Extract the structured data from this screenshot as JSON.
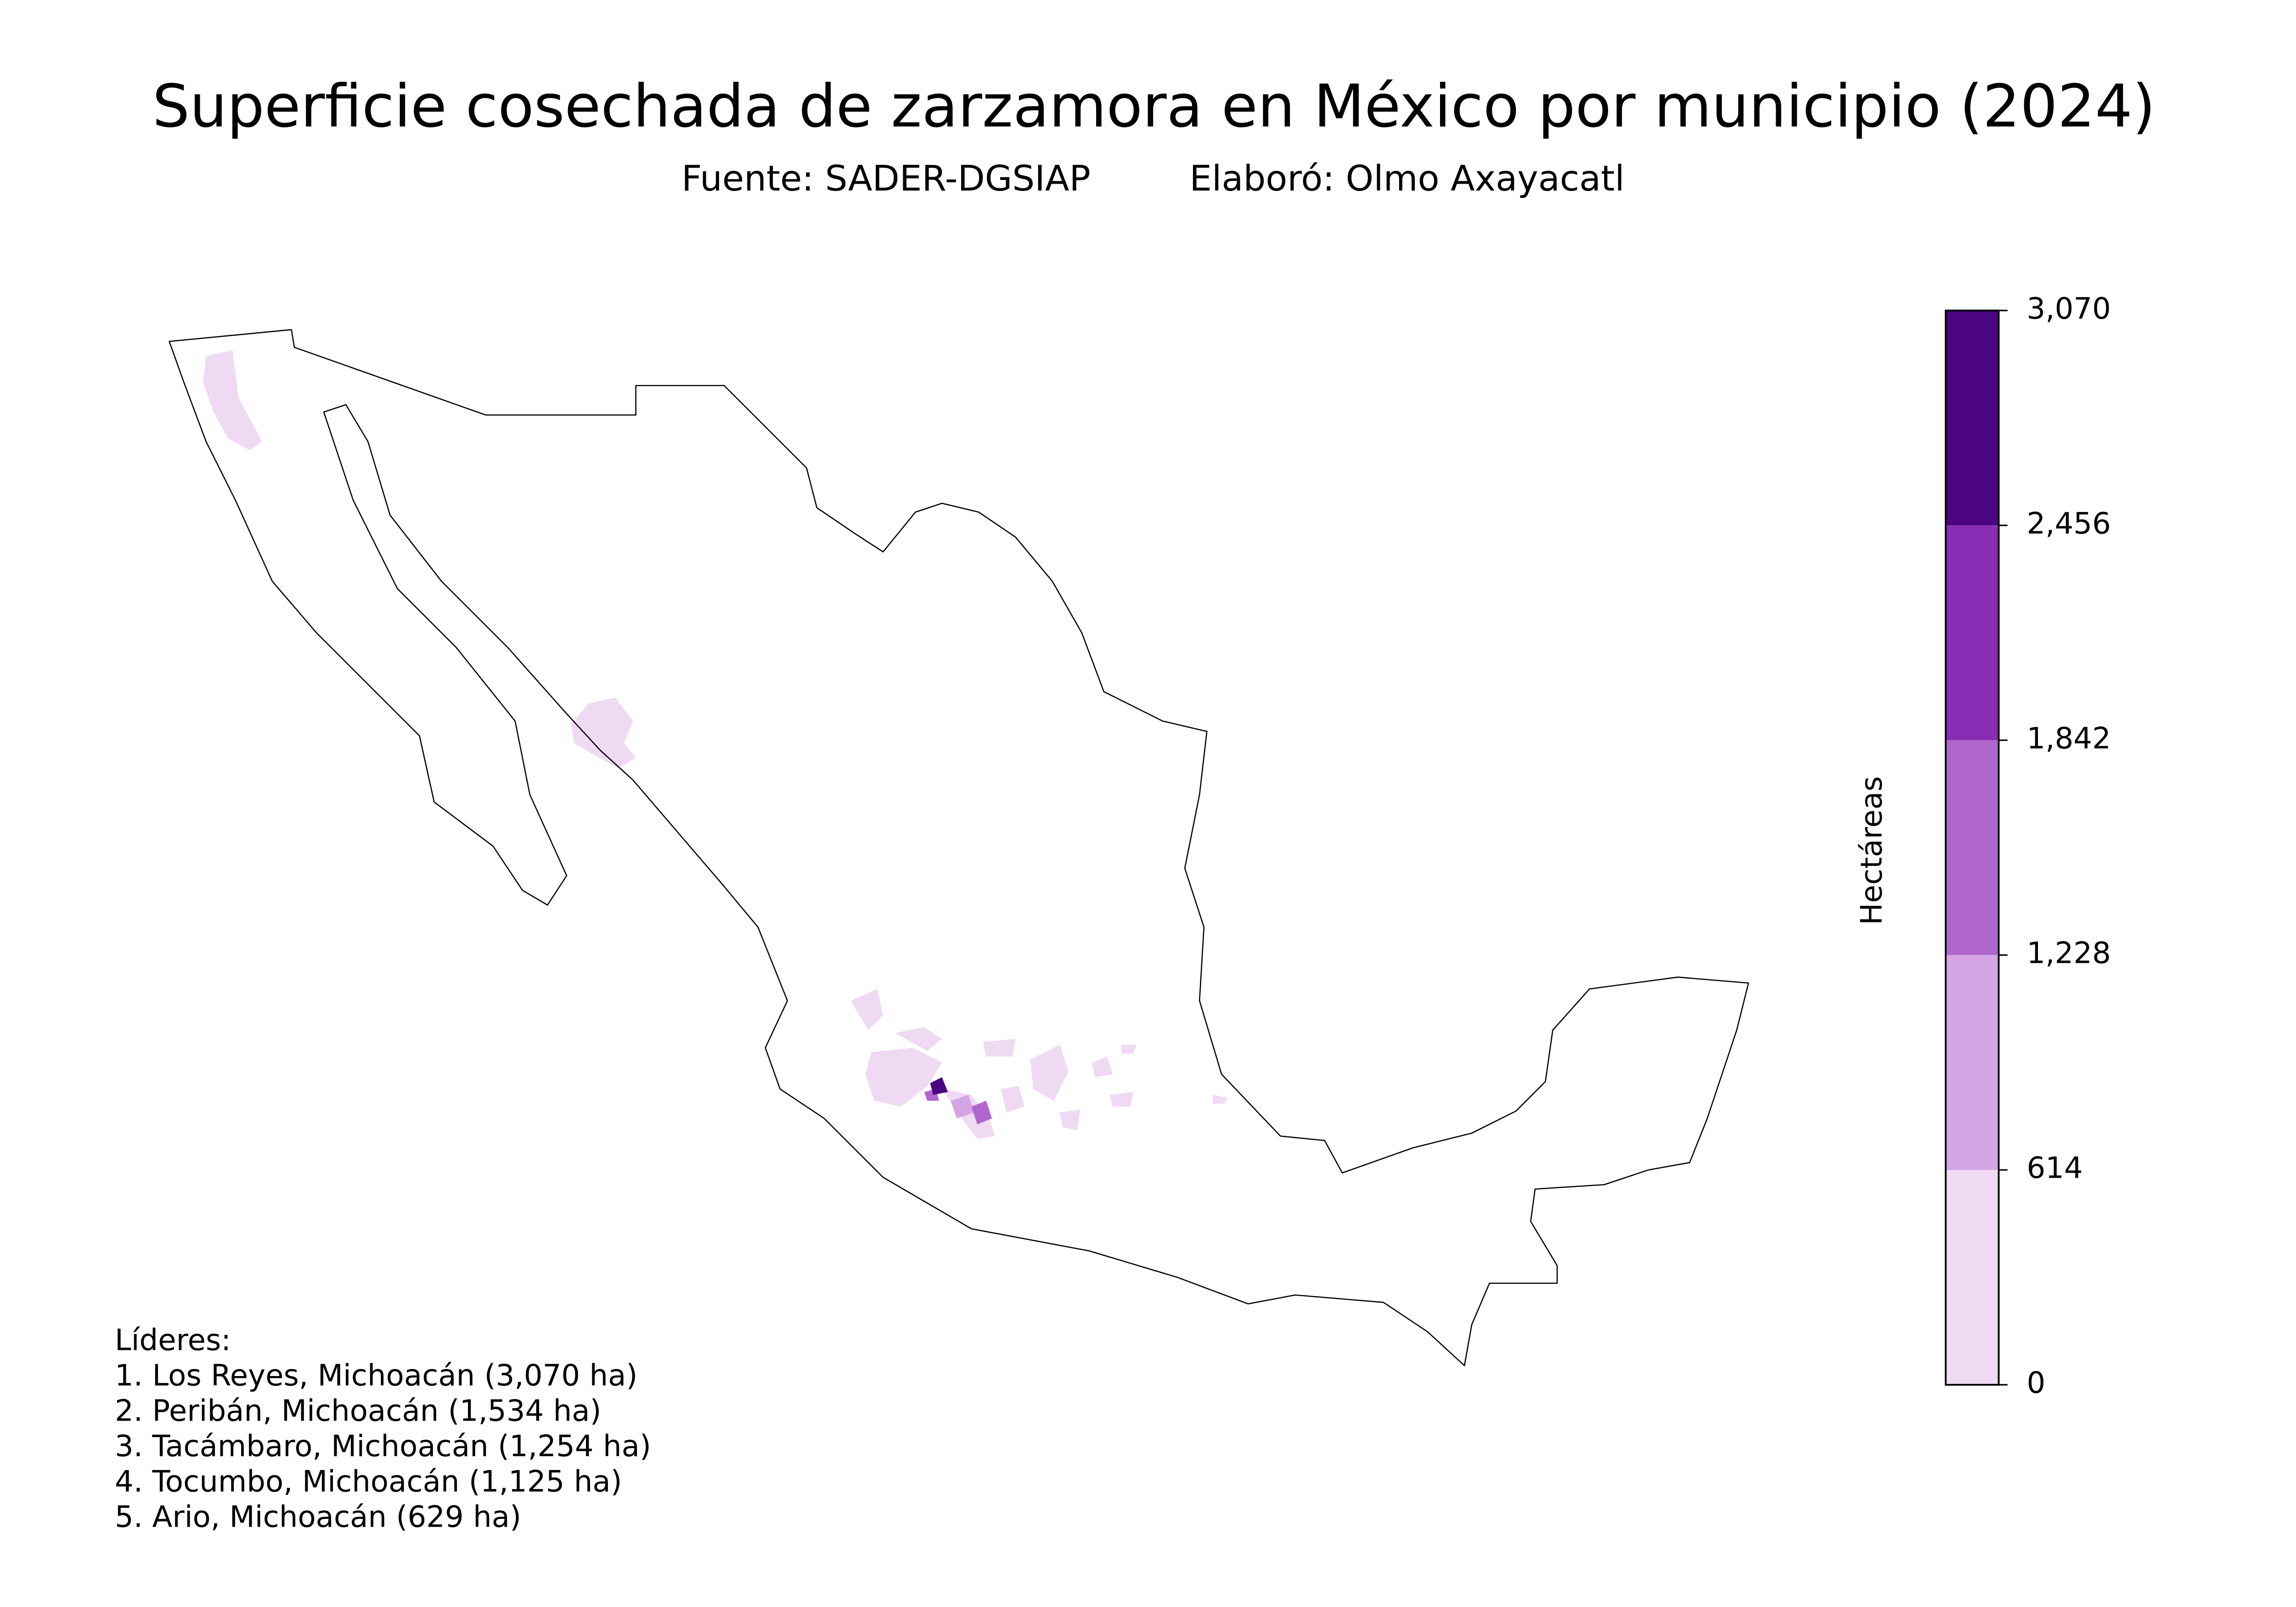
{
  "chart_data": {
    "type": "choropleth",
    "title": "Superficie cosechada de zarzamora en México por municipio (2024)",
    "source": "Fuente: SADER-DGSIAP",
    "author": "Elaboró: Olmo Axayacatl",
    "colorbar": {
      "label": "Hectáreas",
      "lim": [
        0,
        3070
      ],
      "ticks": [
        0,
        614,
        {
          "value": 1228,
          "label": "1,228"
        },
        {
          "value": 1842,
          "label": "1,842"
        },
        {
          "value": 2456,
          "label": "2,456"
        },
        {
          "value": 3070,
          "label": "3,070"
        }
      ],
      "colors": [
        "#efd9f3",
        "#d4a5e2",
        "#b067cd",
        "#8a2db5",
        "#4b0580"
      ]
    },
    "leaders": {
      "title": "Líderes:",
      "items": [
        "1. Los Reyes, Michoacán (3,070 ha)",
        "2. Peribán, Michoacán (1,534 ha)",
        "3. Tacámbaro, Michoacán (1,254 ha)",
        "4. Tocumbo, Michoacán (1,125 ha)",
        "5. Ario, Michoacán (629 ha)"
      ]
    }
  }
}
